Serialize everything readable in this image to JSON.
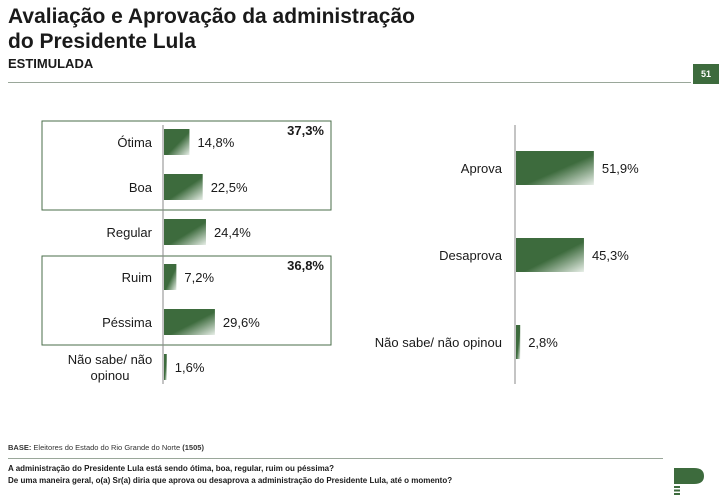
{
  "header": {
    "title_line1": "Avaliação e Aprovação da administração",
    "title_line2": "do Presidente Lula",
    "subtitle": "ESTIMULADA",
    "page_number": "51"
  },
  "chart_data": [
    {
      "type": "bar",
      "orientation": "horizontal",
      "categories": [
        "Ótima",
        "Boa",
        "Regular",
        "Ruim",
        "Péssima",
        "Não sabe/ não opinou"
      ],
      "values": [
        14.8,
        22.5,
        24.4,
        7.2,
        29.6,
        1.6
      ],
      "value_labels": [
        "14,8%",
        "22,5%",
        "24,4%",
        "7,2%",
        "29,6%",
        "1,6%"
      ],
      "groups": [
        {
          "members": [
            "Ótima",
            "Boa"
          ],
          "total_label": "37,3%"
        },
        {
          "members": [
            "Ruim",
            "Péssima"
          ],
          "total_label": "36,8%"
        }
      ],
      "bar_color": "#3d6b3d",
      "gradient_light": "#e8efe8"
    },
    {
      "type": "bar",
      "orientation": "horizontal",
      "categories": [
        "Aprova",
        "Desaprova",
        "Não sabe/ não opinou"
      ],
      "values": [
        51.9,
        45.3,
        2.8
      ],
      "value_labels": [
        "51,9%",
        "45,3%",
        "2,8%"
      ],
      "bar_color": "#3d6b3d",
      "gradient_light": "#e8efe8"
    }
  ],
  "footer": {
    "base_label": "BASE:",
    "base_text": " Eleitores do Estado do Rio Grande do Norte ",
    "base_count": "(1505)",
    "question1": "A administração do Presidente Lula está sendo ótima, boa, regular, ruim ou péssima?",
    "question2": "De uma maneira geral, o(a) Sr(a) diria que aprova ou desaprova a administração do Presidente Lula, até o momento?"
  },
  "colors": {
    "brand_green": "#3d6b3d",
    "group_box": "#4a6e4a"
  }
}
